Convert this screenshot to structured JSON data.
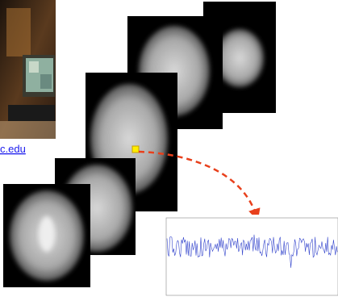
{
  "link": {
    "text": "c.edu"
  }
}
